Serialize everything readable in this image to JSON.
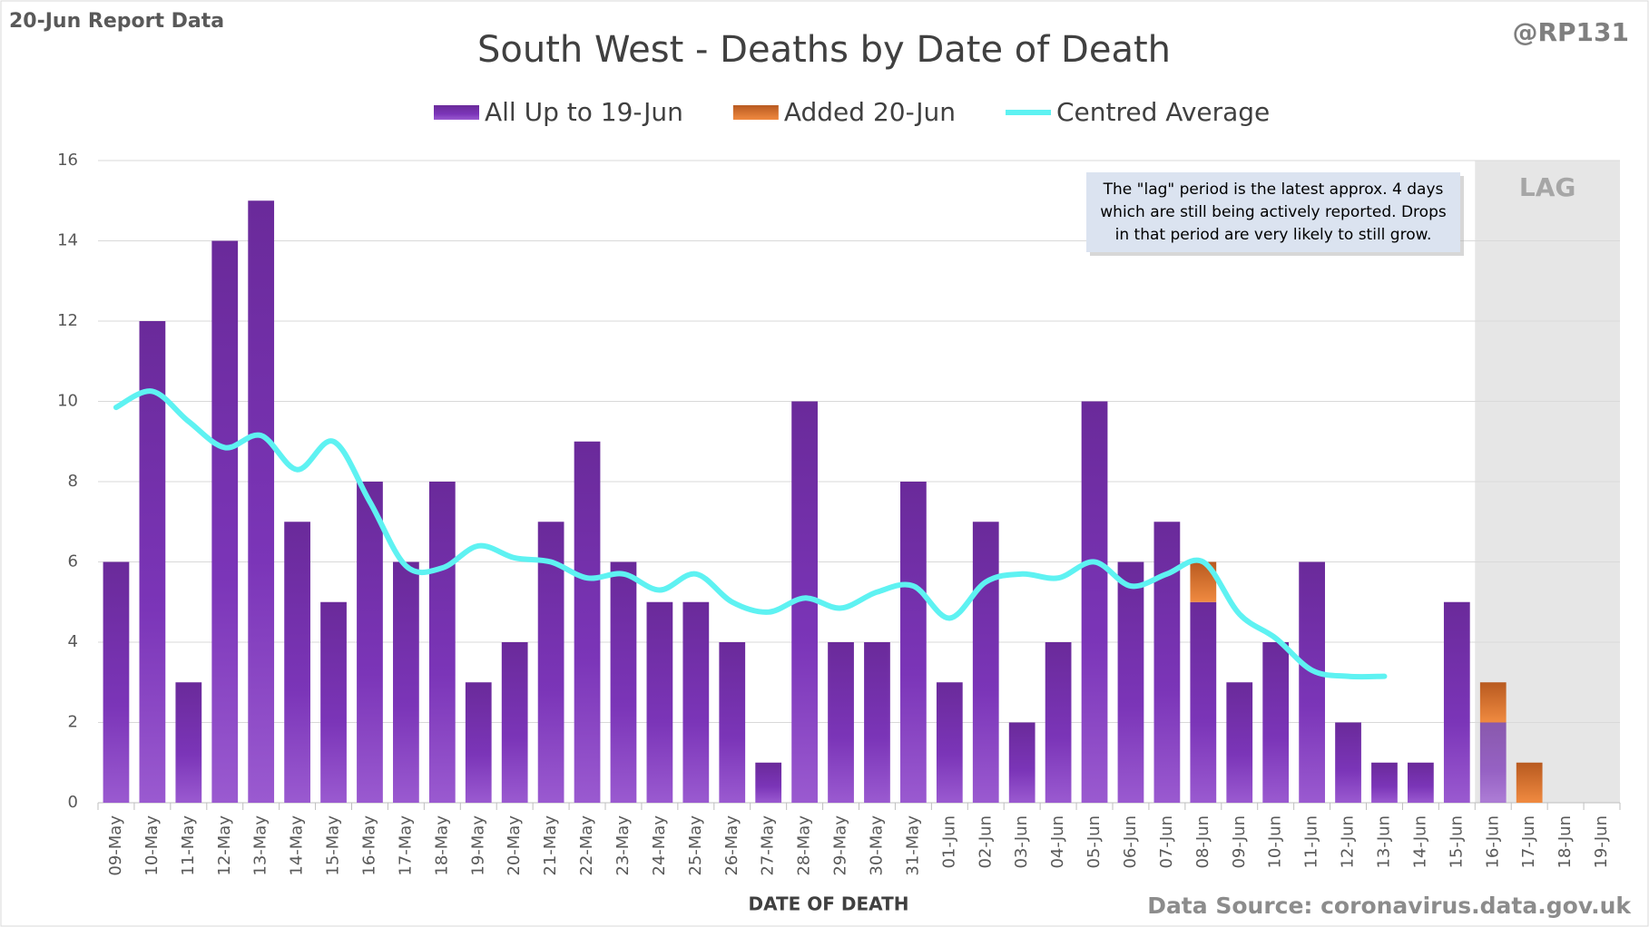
{
  "chart_data": {
    "type": "bar",
    "corner_label": "20-Jun Report Data",
    "handle": "@RP131",
    "title": "South West - Deaths by Date of Death",
    "x_label": "DATE OF DEATH",
    "source": "Data Source: coronavirus.data.gov.uk",
    "lag_label": "LAG",
    "annotation": [
      "The \"lag\" period is the latest approx. 4 days",
      "which are still being actively reported. Drops",
      "in that period are very likely to still grow."
    ],
    "categories": [
      "09-May",
      "10-May",
      "11-May",
      "12-May",
      "13-May",
      "14-May",
      "15-May",
      "16-May",
      "17-May",
      "18-May",
      "19-May",
      "20-May",
      "21-May",
      "22-May",
      "23-May",
      "24-May",
      "25-May",
      "26-May",
      "27-May",
      "28-May",
      "29-May",
      "30-May",
      "31-May",
      "01-Jun",
      "02-Jun",
      "03-Jun",
      "04-Jun",
      "05-Jun",
      "06-Jun",
      "07-Jun",
      "08-Jun",
      "09-Jun",
      "10-Jun",
      "11-Jun",
      "12-Jun",
      "13-Jun",
      "14-Jun",
      "15-Jun",
      "16-Jun",
      "17-Jun",
      "18-Jun",
      "19-Jun"
    ],
    "series": [
      {
        "name": "All Up to 19-Jun",
        "type": "bar",
        "color": "#7030a0",
        "values": [
          6,
          12,
          3,
          14,
          15,
          7,
          5,
          8,
          6,
          8,
          3,
          4,
          7,
          9,
          6,
          5,
          5,
          4,
          1,
          10,
          4,
          4,
          8,
          3,
          7,
          2,
          4,
          10,
          6,
          7,
          5,
          3,
          4,
          6,
          2,
          1,
          1,
          5,
          2,
          0,
          0,
          0
        ]
      },
      {
        "name": "Added 20-Jun",
        "type": "bar",
        "color": "#d86f2a",
        "values": [
          0,
          0,
          0,
          0,
          0,
          0,
          0,
          0,
          0,
          0,
          0,
          0,
          0,
          0,
          0,
          0,
          0,
          0,
          0,
          0,
          0,
          0,
          0,
          0,
          0,
          0,
          0,
          0,
          0,
          0,
          1,
          0,
          0,
          0,
          0,
          0,
          0,
          0,
          1,
          1,
          0,
          0
        ]
      },
      {
        "name": "Centred Average",
        "type": "line",
        "color": "#5ef2f2",
        "values": [
          9.85,
          10.25,
          9.5,
          8.85,
          9.15,
          8.3,
          9.0,
          7.5,
          5.9,
          5.85,
          6.4,
          6.1,
          6.0,
          5.6,
          5.7,
          5.3,
          5.7,
          5.0,
          4.75,
          5.1,
          4.85,
          5.25,
          5.4,
          4.6,
          5.5,
          5.7,
          5.6,
          6.0,
          5.4,
          5.7,
          6.0,
          4.7,
          4.1,
          3.3,
          3.15,
          3.15,
          null,
          null,
          null,
          null,
          null,
          null
        ]
      }
    ],
    "ylim": [
      0,
      16
    ],
    "yticks": [
      0,
      2,
      4,
      6,
      8,
      10,
      12,
      14,
      16
    ],
    "grid": true
  }
}
